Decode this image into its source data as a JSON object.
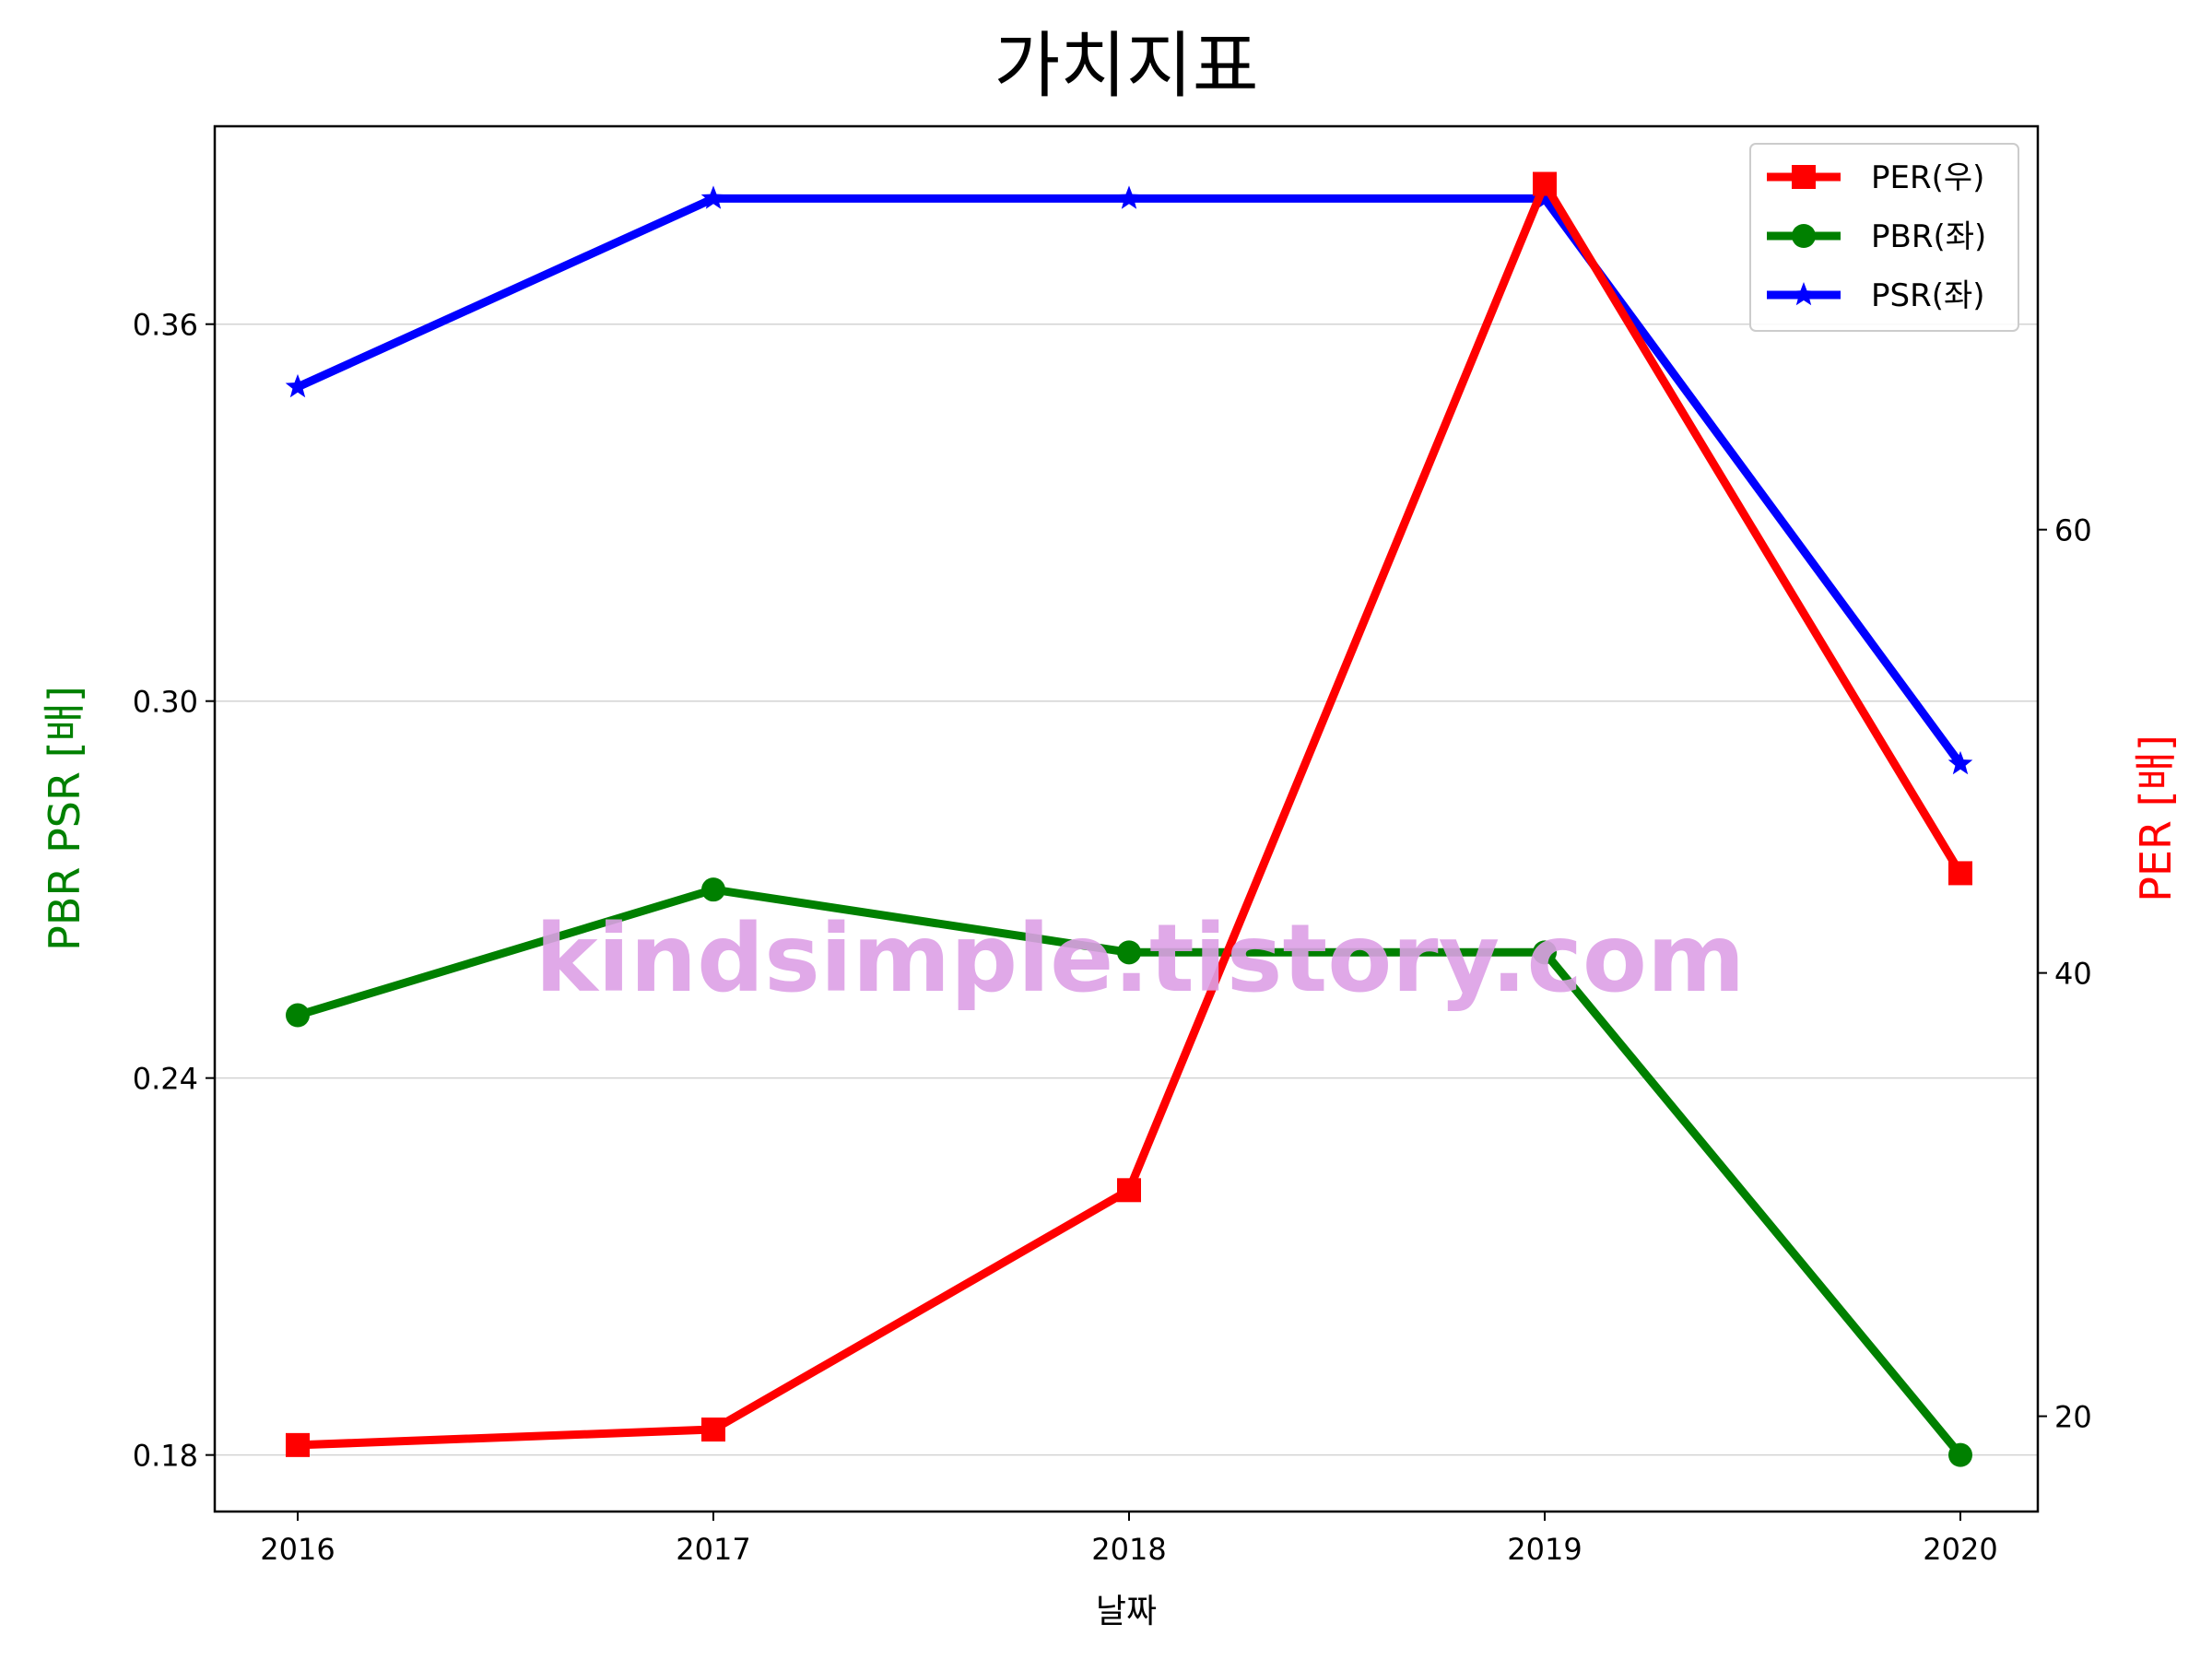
{
  "chart_data": {
    "type": "line",
    "title": "가치지표",
    "xlabel": "날짜",
    "ylabel_left": "PBR PSR [배]",
    "ylabel_right": "PER [배]",
    "ylabel_left_color": "#008000",
    "ylabel_right_color": "#ff0000",
    "categories": [
      "2016",
      "2017",
      "2018",
      "2019",
      "2020"
    ],
    "y_left": {
      "lim": [
        0.171,
        0.3915
      ],
      "ticks": [
        "0.18",
        "0.24",
        "0.30",
        "0.36"
      ]
    },
    "y_right": {
      "lim": [
        15.7,
        78.2
      ],
      "ticks": [
        "20",
        "40",
        "60"
      ]
    },
    "grid": "horizontal",
    "legend_position": "top-right",
    "series": [
      {
        "name": "PER(우)",
        "axis": "right",
        "color": "#ff0000",
        "marker": "square",
        "values": [
          18.7,
          19.4,
          30.2,
          75.6,
          44.5
        ]
      },
      {
        "name": "PBR(좌)",
        "axis": "left",
        "color": "#008000",
        "marker": "circle",
        "values": [
          0.25,
          0.27,
          0.26,
          0.26,
          0.18
        ]
      },
      {
        "name": "PSR(좌)",
        "axis": "left",
        "color": "#0000ff",
        "marker": "star",
        "values": [
          0.35,
          0.38,
          0.38,
          0.38,
          0.29
        ]
      }
    ],
    "watermark": "kindsimple.tistory.com"
  }
}
